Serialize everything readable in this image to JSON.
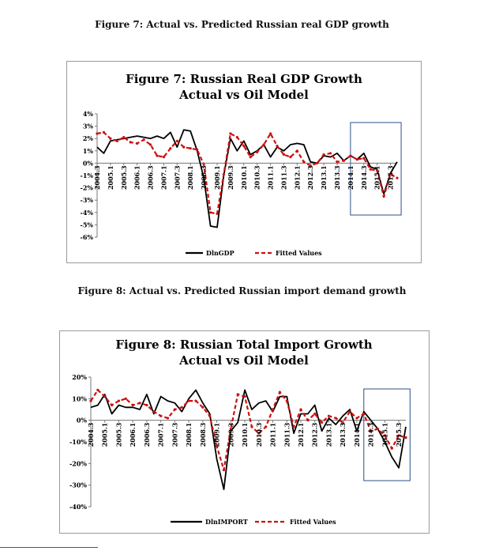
{
  "captions": {
    "fig7": "Figure 7: Actual vs. Predicted Russian real GDP growth",
    "fig8": "Figure 8: Actual vs. Predicted Russian import demand growth"
  },
  "chart_data": [
    {
      "type": "line",
      "title": "Figure 7: Russian Real GDP Growth",
      "subtitle": "Actual vs Oil Model",
      "xlabel": "",
      "ylabel": "",
      "ylim": [
        -6,
        4
      ],
      "yticks": [
        4,
        3,
        2,
        1,
        0,
        -1,
        -2,
        -3,
        -4,
        -5,
        -6
      ],
      "ytick_suffix": "%",
      "grid": false,
      "legend": "bottom",
      "x_labels": [
        "2004.3",
        "2005.1",
        "2005.3",
        "2006.1",
        "2006.3",
        "2007.1",
        "2007.3",
        "2008.1",
        "2008.3",
        "2009.1",
        "2009.3",
        "2010.1",
        "2010.3",
        "2011.1",
        "2011.3",
        "2012.1",
        "2012.3",
        "2013.1",
        "2013.3",
        "2014.1",
        "2014.3",
        "2015.1",
        "2015.3"
      ],
      "highlight_range": [
        2014.0,
        2015.9
      ],
      "series": [
        {
          "name": "DlnGDP",
          "style": "solid",
          "color": "#000000",
          "x": [
            2004.5,
            2004.75,
            2005.0,
            2005.25,
            2005.5,
            2005.75,
            2006.0,
            2006.25,
            2006.5,
            2006.75,
            2007.0,
            2007.25,
            2007.5,
            2007.75,
            2008.0,
            2008.25,
            2008.5,
            2008.75,
            2009.0,
            2009.25,
            2009.5,
            2009.75,
            2010.0,
            2010.25,
            2010.5,
            2010.75,
            2011.0,
            2011.25,
            2011.5,
            2011.75,
            2012.0,
            2012.25,
            2012.5,
            2012.75,
            2013.0,
            2013.25,
            2013.5,
            2013.75,
            2014.0,
            2014.25,
            2014.5,
            2014.75,
            2015.0,
            2015.25,
            2015.5,
            2015.75
          ],
          "y": [
            1.3,
            0.8,
            1.8,
            1.9,
            2.0,
            2.1,
            2.2,
            2.1,
            2.0,
            2.2,
            2.0,
            2.5,
            1.3,
            2.7,
            2.6,
            1.0,
            -1.2,
            -5.1,
            -5.2,
            -1.0,
            2.0,
            1.0,
            1.8,
            0.7,
            1.0,
            1.5,
            0.5,
            1.3,
            1.0,
            1.5,
            1.6,
            1.5,
            0.1,
            0.0,
            0.6,
            0.5,
            0.8,
            0.2,
            0.6,
            0.3,
            0.8,
            -0.3,
            -0.5,
            -2.5,
            -0.8,
            0.1
          ]
        },
        {
          "name": "Fitted Values",
          "style": "dashed",
          "color": "#cc1111",
          "x": [
            2004.5,
            2004.75,
            2005.0,
            2005.25,
            2005.5,
            2005.75,
            2006.0,
            2006.25,
            2006.5,
            2006.75,
            2007.0,
            2007.25,
            2007.5,
            2007.75,
            2008.0,
            2008.25,
            2008.5,
            2008.75,
            2009.0,
            2009.25,
            2009.5,
            2009.75,
            2010.0,
            2010.25,
            2010.5,
            2010.75,
            2011.0,
            2011.25,
            2011.5,
            2011.75,
            2012.0,
            2012.25,
            2012.5,
            2012.75,
            2013.0,
            2013.25,
            2013.5,
            2013.75,
            2014.0,
            2014.25,
            2014.5,
            2014.75,
            2015.0,
            2015.25,
            2015.5,
            2015.75
          ],
          "y": [
            2.4,
            2.5,
            2.0,
            1.8,
            2.1,
            1.7,
            1.6,
            1.9,
            1.5,
            0.6,
            0.5,
            1.2,
            1.8,
            1.3,
            1.2,
            1.1,
            -0.1,
            -4.0,
            -4.1,
            -0.9,
            2.4,
            2.1,
            1.4,
            0.5,
            0.9,
            1.5,
            2.4,
            1.4,
            0.7,
            0.5,
            1.0,
            0.1,
            -0.2,
            0.0,
            0.7,
            0.8,
            0.1,
            0.2,
            0.6,
            0.3,
            0.4,
            -0.5,
            -0.6,
            -2.7,
            -0.9,
            -1.2
          ]
        }
      ]
    },
    {
      "type": "line",
      "title": "Figure 8: Russian Total Import Growth",
      "subtitle": "Actual vs Oil Model",
      "xlabel": "",
      "ylabel": "",
      "ylim": [
        -40,
        20
      ],
      "yticks": [
        20,
        10,
        0,
        -10,
        -20,
        -30,
        -40
      ],
      "ytick_suffix": "%",
      "grid": false,
      "legend": "bottom",
      "x_labels": [
        "2004.3",
        "2005.1",
        "2005.3",
        "2006.1",
        "2006.3",
        "2007.1",
        "2007.3",
        "2008.1",
        "2008.3",
        "2009.1",
        "2009.3",
        "2010.1",
        "2010.3",
        "2011.1",
        "2011.3",
        "2012.1",
        "2012.3",
        "2013.1",
        "2013.3",
        "2014.1",
        "2014.3",
        "2015.1",
        "2015.3"
      ],
      "highlight_range": [
        2014.25,
        2015.9
      ],
      "series": [
        {
          "name": "DlnIMPORT",
          "style": "solid",
          "color": "#000000",
          "x": [
            2004.5,
            2004.75,
            2005.0,
            2005.25,
            2005.5,
            2005.75,
            2006.0,
            2006.25,
            2006.5,
            2006.75,
            2007.0,
            2007.25,
            2007.5,
            2007.75,
            2008.0,
            2008.25,
            2008.5,
            2008.75,
            2009.0,
            2009.25,
            2009.5,
            2009.75,
            2010.0,
            2010.25,
            2010.5,
            2010.75,
            2011.0,
            2011.25,
            2011.5,
            2011.75,
            2012.0,
            2012.25,
            2012.5,
            2012.75,
            2013.0,
            2013.25,
            2013.5,
            2013.75,
            2014.0,
            2014.25,
            2014.5,
            2014.75,
            2015.0,
            2015.25,
            2015.5,
            2015.75
          ],
          "y": [
            6,
            7,
            12,
            3,
            7,
            6,
            6,
            5,
            12,
            3,
            11,
            9,
            8,
            4,
            10,
            14,
            8,
            3,
            -18,
            -32,
            -5,
            -1,
            14,
            5,
            8,
            9,
            4,
            11,
            11,
            -6,
            3,
            3,
            7,
            -5,
            1,
            -2,
            2,
            5,
            -5,
            4,
            0,
            -4,
            -10,
            -17,
            -22,
            -3
          ]
        },
        {
          "name": "Fitted Values",
          "style": "dashed",
          "color": "#cc1111",
          "x": [
            2004.5,
            2004.75,
            2005.0,
            2005.25,
            2005.5,
            2005.75,
            2006.0,
            2006.25,
            2006.5,
            2006.75,
            2007.0,
            2007.25,
            2007.5,
            2007.75,
            2008.0,
            2008.25,
            2008.5,
            2008.75,
            2009.0,
            2009.25,
            2009.5,
            2009.75,
            2010.0,
            2010.25,
            2010.5,
            2010.75,
            2011.0,
            2011.25,
            2011.5,
            2011.75,
            2012.0,
            2012.25,
            2012.5,
            2012.75,
            2013.0,
            2013.25,
            2013.5,
            2013.75,
            2014.0,
            2014.25,
            2014.5,
            2014.75,
            2015.0,
            2015.25,
            2015.5,
            2015.75
          ],
          "y": [
            9,
            14,
            11,
            7,
            9,
            10,
            7,
            8,
            7,
            4,
            2,
            1,
            5,
            6,
            9,
            9,
            6,
            2,
            -12,
            -23,
            -4,
            12,
            11,
            -3,
            -6,
            -3,
            5,
            13,
            9,
            -3,
            5,
            0,
            3,
            -1,
            2,
            1,
            -1,
            4,
            1,
            3,
            -5,
            -4,
            -7,
            -13,
            -7,
            -8
          ]
        }
      ]
    }
  ]
}
